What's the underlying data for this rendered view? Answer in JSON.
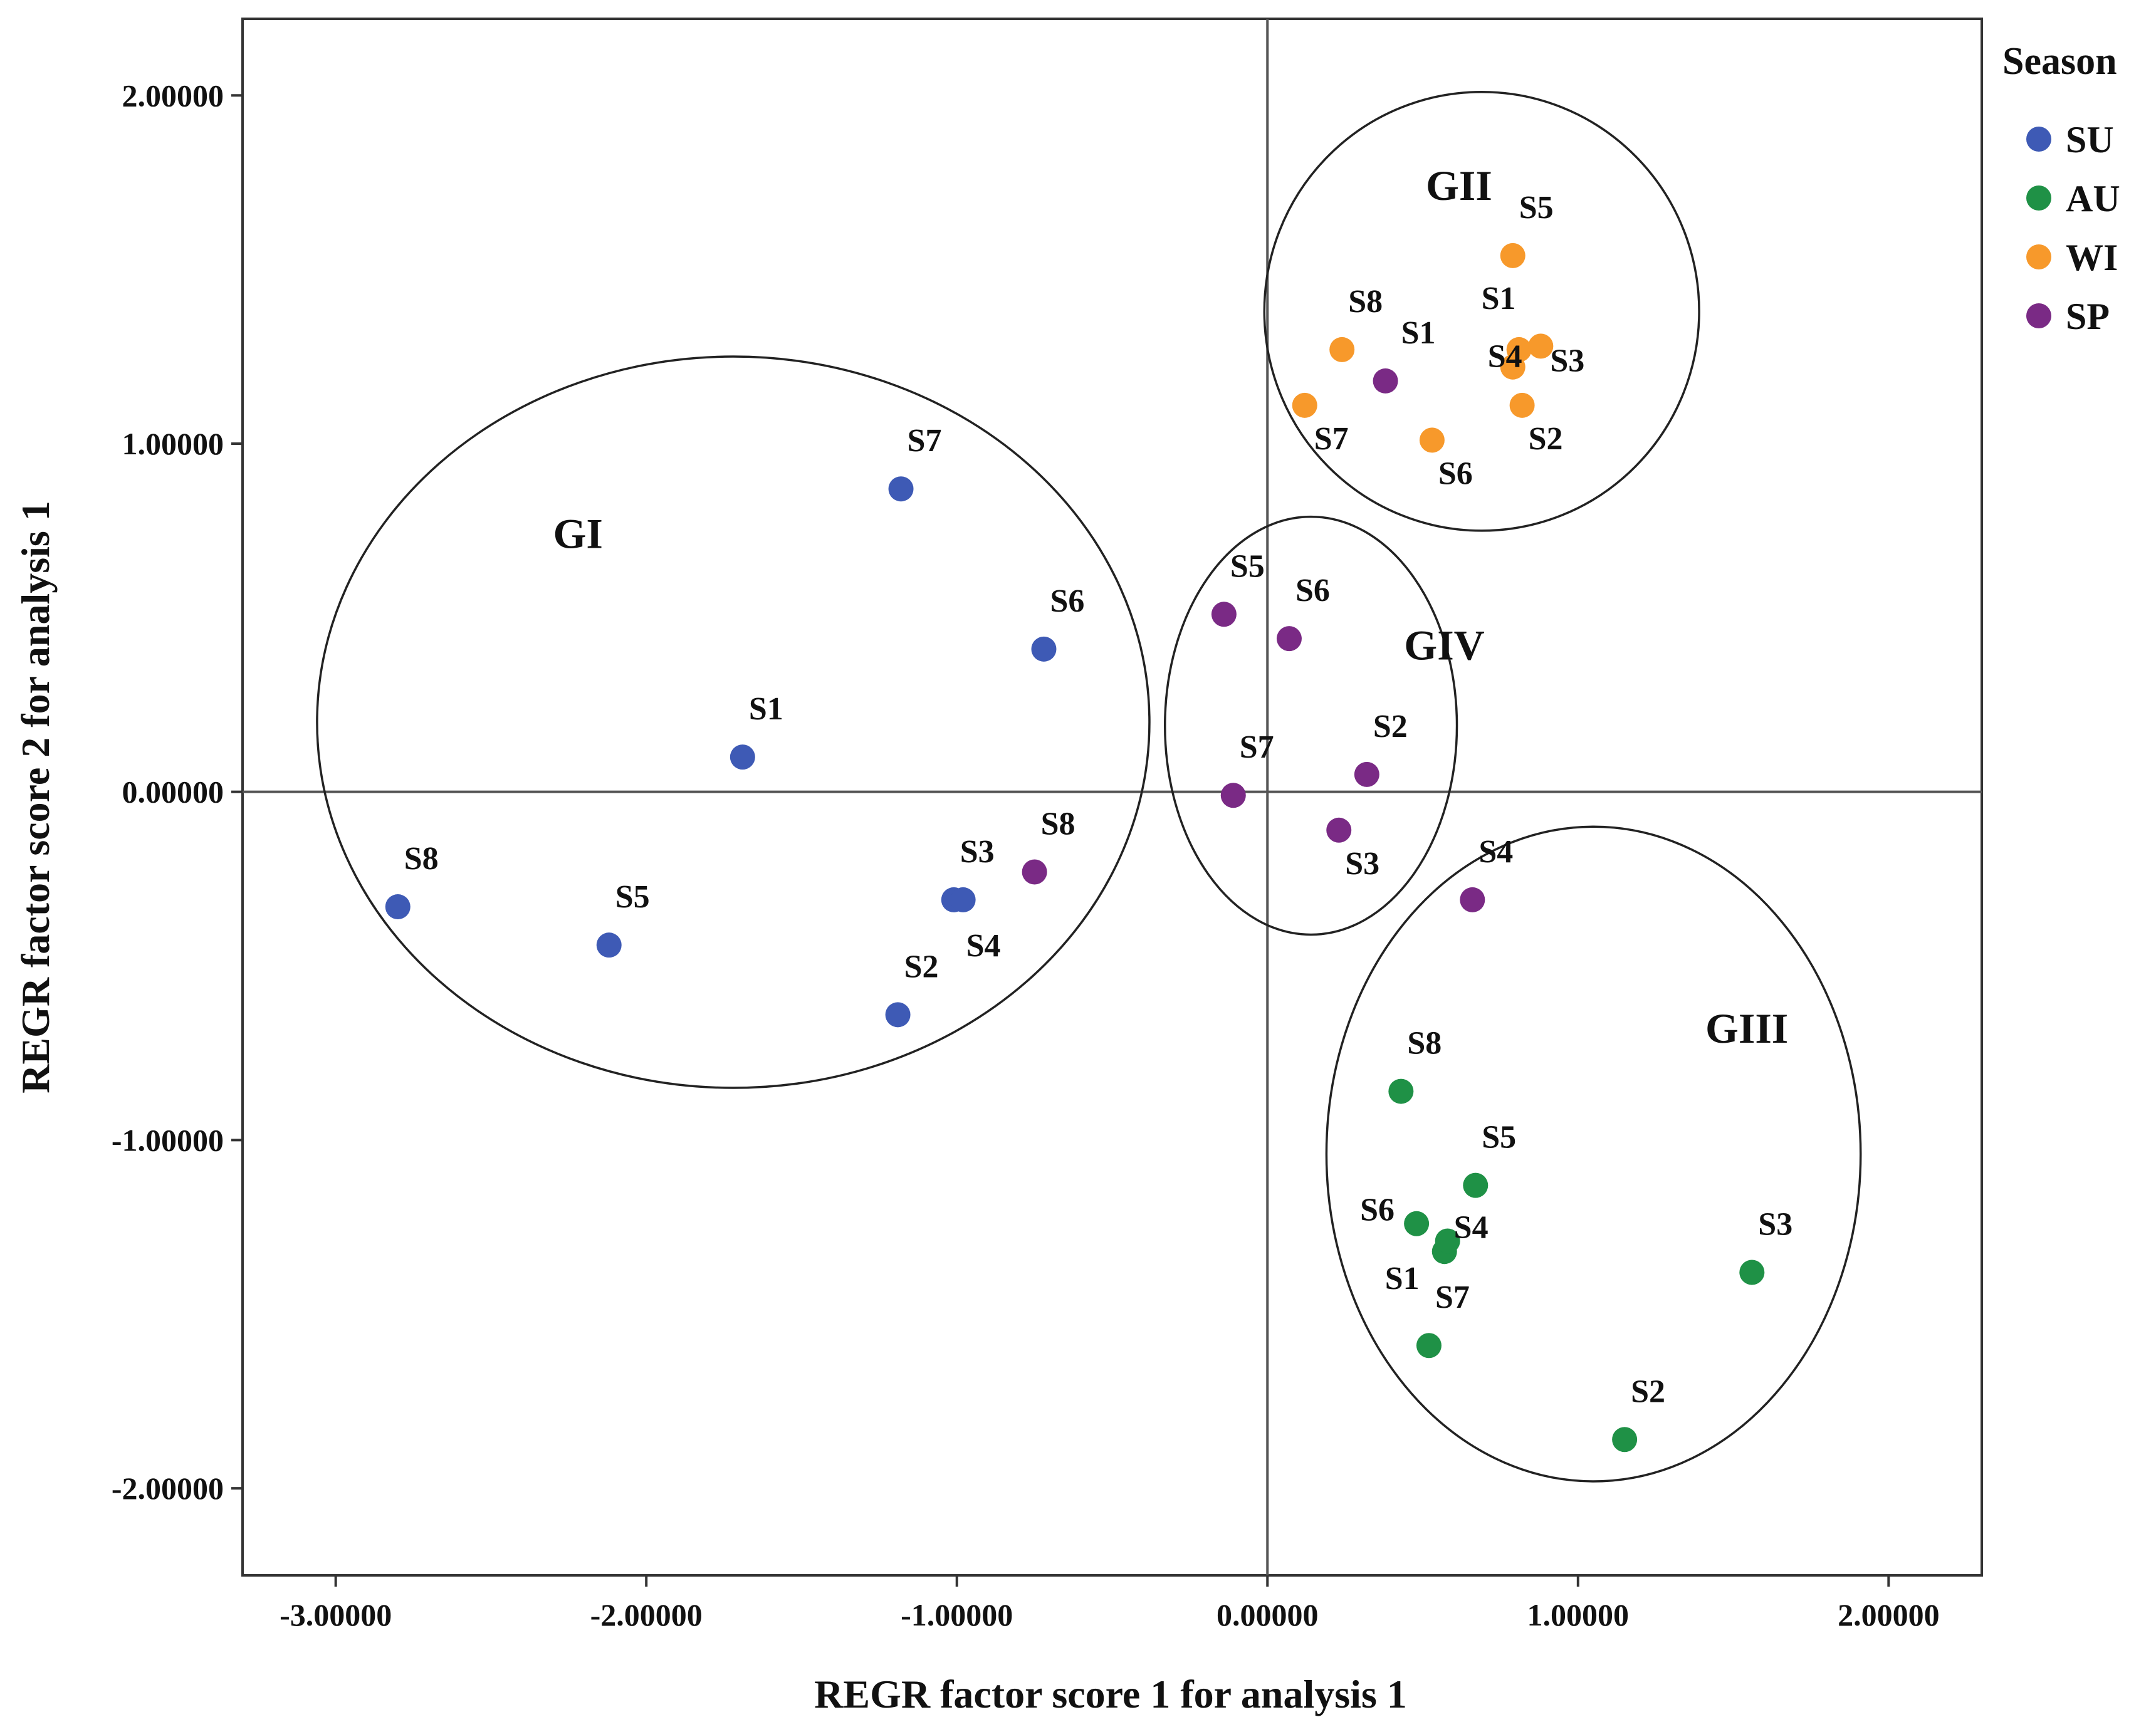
{
  "chart_data": {
    "type": "scatter",
    "title": "",
    "xlabel": "REGR factor score   1 for analysis 1",
    "ylabel": "REGR factor score   2 for analysis 1",
    "xlim": [
      -3.3,
      2.3
    ],
    "ylim": [
      -2.25,
      2.22
    ],
    "xticks": [
      -3.0,
      -2.0,
      -1.0,
      0.0,
      1.0,
      2.0
    ],
    "xtick_labels": [
      "-3.00000",
      "-2.00000",
      "-1.00000",
      "0.00000",
      "1.00000",
      "2.00000"
    ],
    "yticks": [
      2.0,
      1.0,
      0.0,
      -1.0,
      -2.0
    ],
    "ytick_labels": [
      "2.00000",
      "1.00000",
      "0.00000",
      "-1.00000",
      "-2.00000"
    ],
    "reference_lines": {
      "x": 0,
      "y": 0
    },
    "legend": {
      "title": "Season",
      "placement": "top-right, outside plot",
      "entries": [
        {
          "name": "SU",
          "color": "#3e5ab5"
        },
        {
          "name": "AU",
          "color": "#1f9146"
        },
        {
          "name": "WI",
          "color": "#f7992b"
        },
        {
          "name": "SP",
          "color": "#7a2a85"
        }
      ]
    },
    "series": [
      {
        "name": "SU",
        "color": "#3e5ab5",
        "points": [
          {
            "label": "S1",
            "x": -1.69,
            "y": 0.1
          },
          {
            "label": "S2",
            "x": -1.19,
            "y": -0.64
          },
          {
            "label": "S3",
            "x": -1.01,
            "y": -0.31
          },
          {
            "label": "S4",
            "x": -0.98,
            "y": -0.31
          },
          {
            "label": "S5",
            "x": -2.12,
            "y": -0.44
          },
          {
            "label": "S6",
            "x": -0.72,
            "y": 0.41
          },
          {
            "label": "S7",
            "x": -1.18,
            "y": 0.87
          },
          {
            "label": "S8",
            "x": -2.8,
            "y": -0.33
          }
        ]
      },
      {
        "name": "AU",
        "color": "#1f9146",
        "points": [
          {
            "label": "S1",
            "x": 0.57,
            "y": -1.32
          },
          {
            "label": "S2",
            "x": 1.15,
            "y": -1.86
          },
          {
            "label": "S3",
            "x": 1.56,
            "y": -1.38
          },
          {
            "label": "S4",
            "x": 0.58,
            "y": -1.29
          },
          {
            "label": "S5",
            "x": 0.67,
            "y": -1.13
          },
          {
            "label": "S6",
            "x": 0.48,
            "y": -1.24
          },
          {
            "label": "S7",
            "x": 0.52,
            "y": -1.59
          },
          {
            "label": "S8",
            "x": 0.43,
            "y": -0.86
          }
        ]
      },
      {
        "name": "WI",
        "color": "#f7992b",
        "points": [
          {
            "label": "S1",
            "x": 0.81,
            "y": 1.27
          },
          {
            "label": "S2",
            "x": 0.82,
            "y": 1.11
          },
          {
            "label": "S3",
            "x": 0.88,
            "y": 1.28
          },
          {
            "label": "S4",
            "x": 0.79,
            "y": 1.22
          },
          {
            "label": "S5",
            "x": 0.79,
            "y": 1.54
          },
          {
            "label": "S6",
            "x": 0.53,
            "y": 1.01
          },
          {
            "label": "S7",
            "x": 0.12,
            "y": 1.11
          },
          {
            "label": "S8",
            "x": 0.24,
            "y": 1.27
          }
        ]
      },
      {
        "name": "SP",
        "color": "#7a2a85",
        "points": [
          {
            "label": "S1",
            "x": 0.38,
            "y": 1.18
          },
          {
            "label": "S2",
            "x": 0.32,
            "y": 0.05
          },
          {
            "label": "S3",
            "x": 0.23,
            "y": -0.11
          },
          {
            "label": "S4",
            "x": 0.66,
            "y": -0.31
          },
          {
            "label": "S5",
            "x": -0.14,
            "y": 0.51
          },
          {
            "label": "S6",
            "x": 0.07,
            "y": 0.44
          },
          {
            "label": "S7",
            "x": -0.11,
            "y": -0.01
          },
          {
            "label": "S8",
            "x": -0.75,
            "y": -0.23
          }
        ]
      }
    ],
    "point_label_offsets": [
      [
        [
          10,
          -60
        ],
        [
          10,
          -60
        ],
        [
          10,
          -60
        ],
        [
          5,
          90
        ],
        [
          10,
          -60
        ],
        [
          10,
          -60
        ],
        [
          10,
          -60
        ],
        [
          10,
          -60
        ]
      ],
      [
        [
          -95,
          60
        ],
        [
          10,
          -60
        ],
        [
          10,
          -60
        ],
        [
          10,
          -5
        ],
        [
          10,
          -60
        ],
        [
          -90,
          -5
        ],
        [
          10,
          -60
        ],
        [
          10,
          -60
        ]
      ],
      [
        [
          -60,
          -65
        ],
        [
          10,
          70
        ],
        [
          15,
          40
        ],
        [
          -40,
          0
        ],
        [
          10,
          -60
        ],
        [
          10,
          70
        ],
        [
          15,
          70
        ],
        [
          10,
          -60
        ]
      ],
      [
        [
          25,
          -60
        ],
        [
          10,
          -60
        ],
        [
          10,
          70
        ],
        [
          10,
          -60
        ],
        [
          10,
          -60
        ],
        [
          10,
          -60
        ],
        [
          10,
          -60
        ],
        [
          10,
          -60
        ]
      ]
    ],
    "groups": [
      {
        "label": "GI",
        "center": [
          -1.72,
          0.2
        ],
        "radii": [
          1.34,
          1.05
        ]
      },
      {
        "label": "GII",
        "center": [
          0.69,
          1.38
        ],
        "radii": [
          0.7,
          0.63
        ]
      },
      {
        "label": "GIII",
        "center": [
          1.05,
          -1.04
        ],
        "radii": [
          0.86,
          0.94
        ]
      },
      {
        "label": "GIV",
        "center": [
          0.14,
          0.19
        ],
        "radii": [
          0.47,
          0.6
        ]
      }
    ],
    "group_label_positions": [
      [
        -2.3,
        0.7
      ],
      [
        0.51,
        1.7
      ],
      [
        1.41,
        -0.72
      ],
      [
        0.44,
        0.38
      ]
    ]
  }
}
